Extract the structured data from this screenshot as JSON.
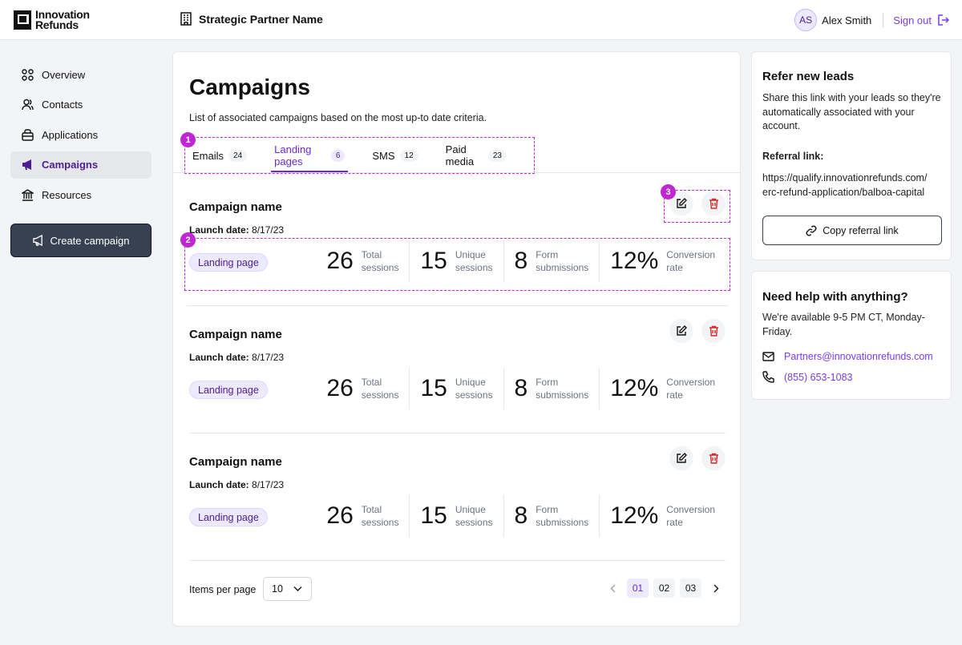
{
  "header": {
    "logo_line1": "Innovation",
    "logo_line2": "Refunds",
    "partner_name": "Strategic Partner Name",
    "user_initials": "AS",
    "user_name": "Alex Smith",
    "sign_out": "Sign out"
  },
  "sidebar": {
    "items": [
      {
        "label": "Overview",
        "icon": "grid-icon"
      },
      {
        "label": "Contacts",
        "icon": "users-icon"
      },
      {
        "label": "Applications",
        "icon": "briefcase-icon"
      },
      {
        "label": "Campaigns",
        "icon": "megaphone-icon"
      },
      {
        "label": "Resources",
        "icon": "bank-icon"
      }
    ],
    "active": "Campaigns",
    "create_label": "Create campaign"
  },
  "main": {
    "title": "Campaigns",
    "subtitle": "List of associated campaigns based on the most up-to date criteria.",
    "tabs": [
      {
        "label": "Emails",
        "count": "24"
      },
      {
        "label": "Landing pages",
        "count": "6"
      },
      {
        "label": "SMS",
        "count": "12"
      },
      {
        "label": "Paid media",
        "count": "23"
      }
    ],
    "active_tab": "Landing pages",
    "markers": [
      "1",
      "2",
      "3"
    ],
    "campaigns": [
      {
        "name": "Campaign name",
        "launch_label": "Launch date:",
        "launch_date": "8/17/23",
        "type": "Landing page",
        "stats": [
          {
            "value": "26",
            "label1": "Total",
            "label2": "sessions"
          },
          {
            "value": "15",
            "label1": "Unique",
            "label2": "sessions"
          },
          {
            "value": "8",
            "label1": "Form",
            "label2": "submissions"
          },
          {
            "value": "12%",
            "label1": "Conversion",
            "label2": "rate"
          }
        ]
      },
      {
        "name": "Campaign name",
        "launch_label": "Launch date:",
        "launch_date": "8/17/23",
        "type": "Landing page",
        "stats": [
          {
            "value": "26",
            "label1": "Total",
            "label2": "sessions"
          },
          {
            "value": "15",
            "label1": "Unique",
            "label2": "sessions"
          },
          {
            "value": "8",
            "label1": "Form",
            "label2": "submissions"
          },
          {
            "value": "12%",
            "label1": "Conversion",
            "label2": "rate"
          }
        ]
      },
      {
        "name": "Campaign name",
        "launch_label": "Launch date:",
        "launch_date": "8/17/23",
        "type": "Landing page",
        "stats": [
          {
            "value": "26",
            "label1": "Total",
            "label2": "sessions"
          },
          {
            "value": "15",
            "label1": "Unique",
            "label2": "sessions"
          },
          {
            "value": "8",
            "label1": "Form",
            "label2": "submissions"
          },
          {
            "value": "12%",
            "label1": "Conversion",
            "label2": "rate"
          }
        ]
      }
    ],
    "pagination": {
      "items_per_page_label": "Items per page",
      "items_per_page_value": "10",
      "pages": [
        "01",
        "02",
        "03"
      ],
      "current_page": "01"
    }
  },
  "refer": {
    "title": "Refer new leads",
    "description": "Share this link with your leads so they're automatically associated with your account.",
    "link_label": "Referral link:",
    "link_line1": "https://qualify.innovationrefunds.com/",
    "link_line2": "erc-refund-application/balboa-capital",
    "copy_label": "Copy referral link"
  },
  "help": {
    "title": "Need help with anything?",
    "description": "We're available 9-5 PM CT, Monday-Friday.",
    "email": "Partners@innovationrefunds.com",
    "phone": "(855) 653-1083"
  },
  "colors": {
    "accent": "#7c3aed",
    "annotation": "#c026d3",
    "delete": "#dc2626"
  }
}
